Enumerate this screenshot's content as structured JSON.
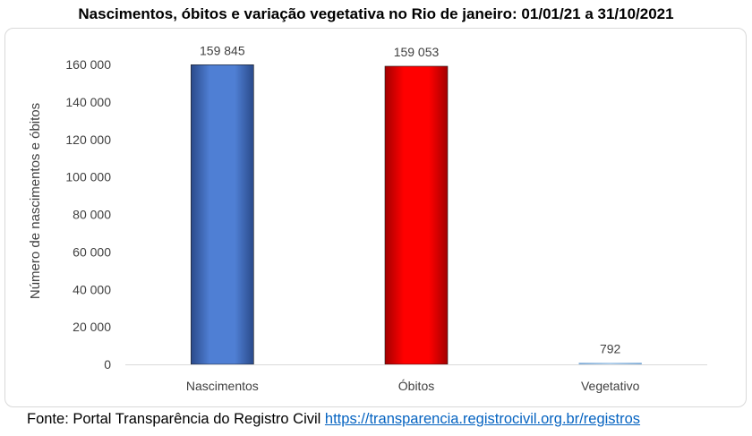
{
  "title": "Nascimentos, óbitos e variação vegetativa no Rio de janeiro: 01/01/21 a 31/10/2021",
  "source": {
    "prefix": "Fonte: Portal Transparência do Registro Civil",
    "link_text": "https://transparencia.registrocivil.org.br/registros"
  },
  "colors": {
    "nascimentos": "#4472c4",
    "obitos": "#ff0000",
    "vegetativo": "#9dc3e6",
    "axis": "#d9d9d9",
    "text": "#404040",
    "link": "#0563c1"
  },
  "chart_data": {
    "type": "bar",
    "title": "Nascimentos, óbitos e variação vegetativa no Rio de janeiro: 01/01/21 a 31/10/2021",
    "xlabel": "",
    "ylabel": "Número de nascimentos e óbitos",
    "categories": [
      "Nascimentos",
      "Óbitos",
      "Vegetativo"
    ],
    "values": [
      159845,
      159053,
      792
    ],
    "data_labels": [
      "159 845",
      "159 053",
      "792"
    ],
    "ylim": [
      0,
      160000
    ],
    "yticks": [
      0,
      20000,
      40000,
      60000,
      80000,
      100000,
      120000,
      140000,
      160000
    ],
    "ytick_labels": [
      "0",
      "20 000",
      "40 000",
      "60 000",
      "80 000",
      "100 000",
      "120 000",
      "140 000",
      "160 000"
    ],
    "grid": false,
    "legend": "none"
  }
}
